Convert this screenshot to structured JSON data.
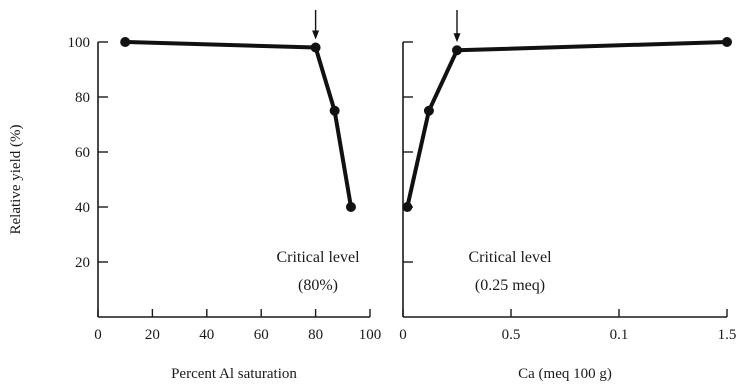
{
  "chart_data": [
    {
      "type": "line",
      "title": "",
      "xlabel": "Percent Al saturation",
      "ylabel": "Relative yield (%)",
      "xlim": [
        0,
        100
      ],
      "ylim": [
        0,
        100
      ],
      "x_ticks": [
        "0",
        "20",
        "40",
        "60",
        "80",
        "100"
      ],
      "y_ticks": [
        "20",
        "40",
        "60",
        "80",
        "100"
      ],
      "series": [
        {
          "x": [
            10,
            80,
            87,
            93
          ],
          "y": [
            100,
            98,
            75,
            40
          ]
        }
      ],
      "critical_x": 80,
      "annotation_line1": "Critical level",
      "annotation_line2": "(80%)"
    },
    {
      "type": "line",
      "title": "",
      "xlabel": "Ca (meq 100 g)",
      "ylabel": "",
      "xlim": [
        0,
        1.5
      ],
      "ylim": [
        0,
        100
      ],
      "x_ticks": [
        "0",
        "0.5",
        "0.1",
        "1.5"
      ],
      "series": [
        {
          "x": [
            0.02,
            0.12,
            0.25,
            1.5
          ],
          "y": [
            40,
            75,
            97,
            100
          ]
        }
      ],
      "critical_x": 0.25,
      "annotation_line1": "Critical level",
      "annotation_line2": "(0.25 meq)"
    }
  ]
}
